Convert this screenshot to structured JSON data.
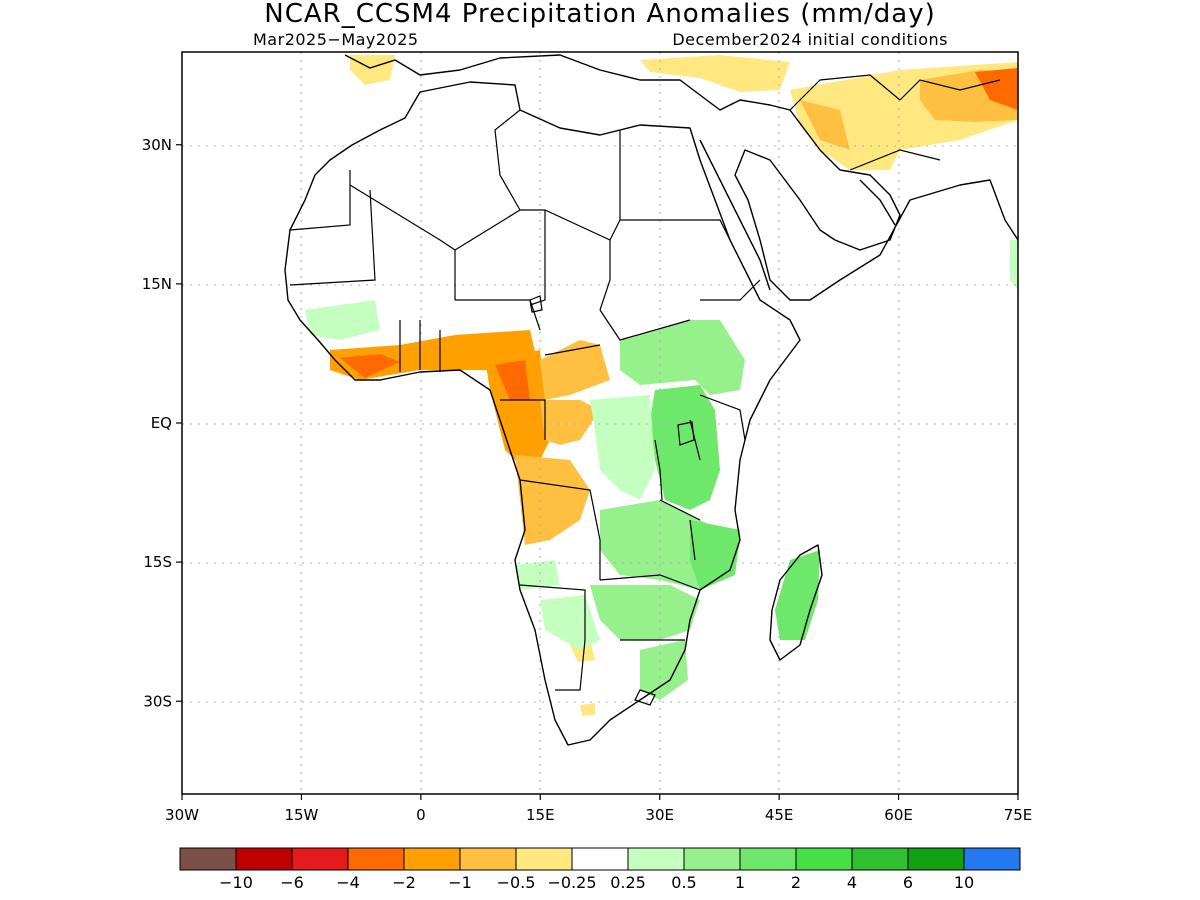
{
  "title": "NCAR_CCSM4 Precipitation Anomalies (mm/day)",
  "period": "Mar2025−May2025",
  "initial_conditions": "December2024 initial conditions",
  "map": {
    "lon_range": [
      -30,
      75
    ],
    "lat_range": [
      -40,
      40
    ],
    "lon_ticks": [
      {
        "value": -30,
        "label": "30W"
      },
      {
        "value": -15,
        "label": "15W"
      },
      {
        "value": 0,
        "label": "0"
      },
      {
        "value": 15,
        "label": "15E"
      },
      {
        "value": 30,
        "label": "30E"
      },
      {
        "value": 45,
        "label": "45E"
      },
      {
        "value": 60,
        "label": "60E"
      },
      {
        "value": 75,
        "label": "75E"
      }
    ],
    "lat_ticks": [
      {
        "value": 30,
        "label": "30N"
      },
      {
        "value": 15,
        "label": "15N"
      },
      {
        "value": 0,
        "label": "EQ"
      },
      {
        "value": -15,
        "label": "15S"
      },
      {
        "value": -30,
        "label": "30S"
      }
    ],
    "grid": "dotted",
    "anomaly_regions": [
      {
        "region": "West Africa Gulf of Guinea coast",
        "class": "-4 to -2"
      },
      {
        "region": "Cameroon / Gabon",
        "class": "-4 to -2"
      },
      {
        "region": "Central African Republic",
        "class": "-1 to -0.5"
      },
      {
        "region": "Angola",
        "class": "-1 to -0.5"
      },
      {
        "region": "Mediterranean / Middle East",
        "class": "-0.5 to -0.25"
      },
      {
        "region": "Northern Pakistan / Afghanistan",
        "class": "-1 to -0.5"
      },
      {
        "region": "East Africa / Great Lakes",
        "class": "0.5 to 1"
      },
      {
        "region": "Mozambique / Zambia",
        "class": "0.5 to 1"
      },
      {
        "region": "Madagascar",
        "class": "0.5 to 1"
      },
      {
        "region": "Southern Africa",
        "class": "0.25 to 0.5"
      }
    ]
  },
  "colorbar": {
    "colors": [
      "#7a5048",
      "#c00000",
      "#e41a1c",
      "#ff6a00",
      "#ffa000",
      "#ffbf40",
      "#ffe880",
      "#ffffff",
      "#c4ffc0",
      "#96f08c",
      "#6ee86a",
      "#46e046",
      "#30c030",
      "#10a010",
      "#2478f0"
    ],
    "labels": [
      "−10",
      "−6",
      "−4",
      "−2",
      "−1",
      "−0.5",
      "−0.25",
      "0.25",
      "0.5",
      "1",
      "2",
      "4",
      "6",
      "10"
    ]
  }
}
